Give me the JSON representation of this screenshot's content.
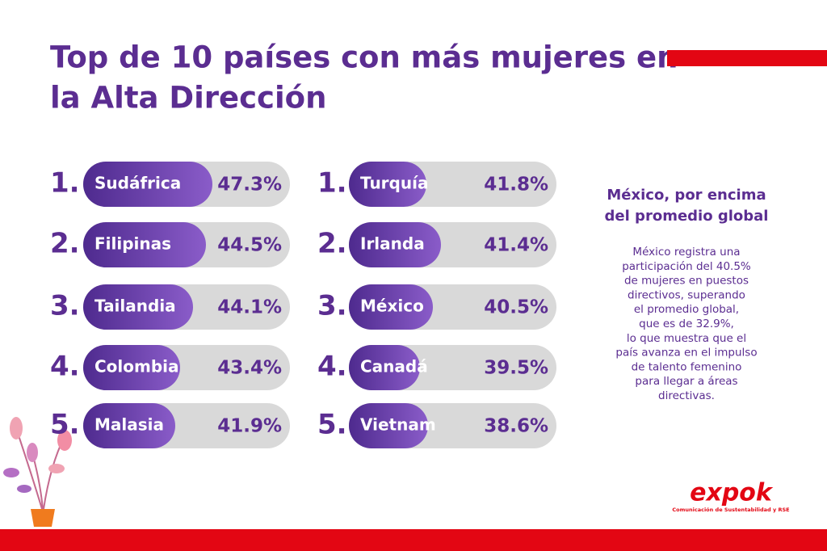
{
  "header": {
    "title_lines": [
      "Top de 10 países con más mujeres en",
      "la Alta Dirección"
    ]
  },
  "lists": [
    {
      "items": [
        {
          "rank": "1.",
          "country": "Sudáfrica",
          "value": "47.3%"
        },
        {
          "rank": "2.",
          "country": "Filipinas",
          "value": "44.5%"
        },
        {
          "rank": "3.",
          "country": "Tailandia",
          "value": "44.1%"
        },
        {
          "rank": "4.",
          "country": "Colombia",
          "value": "43.4%"
        },
        {
          "rank": "5.",
          "country": "Malasia",
          "value": "41.9%"
        }
      ]
    },
    {
      "items": [
        {
          "rank": "1.",
          "country": "Turquía",
          "value": "41.8%"
        },
        {
          "rank": "2.",
          "country": "Irlanda",
          "value": "41.4%"
        },
        {
          "rank": "3.",
          "country": "México",
          "value": "40.5%"
        },
        {
          "rank": "4.",
          "country": "Canadá",
          "value": "39.5%"
        },
        {
          "rank": "5.",
          "country": "Vietnam",
          "value": "38.6%"
        }
      ]
    }
  ],
  "sidebar": {
    "heading_lines": [
      "México, por encima",
      "del promedio global"
    ],
    "body_lines": [
      "México registra una",
      "participación del 40.5%",
      "de mujeres en puestos",
      "directivos, superando",
      "el promedio global,",
      "que es de 32.9%,",
      "lo que muestra que el",
      "país avanza en el impulso",
      "de talento femenino",
      "para llegar a áreas",
      "directivas."
    ]
  },
  "logo": {
    "name": "expok",
    "tagline": "Comunicación de Sustentabilidad y RSE"
  }
}
